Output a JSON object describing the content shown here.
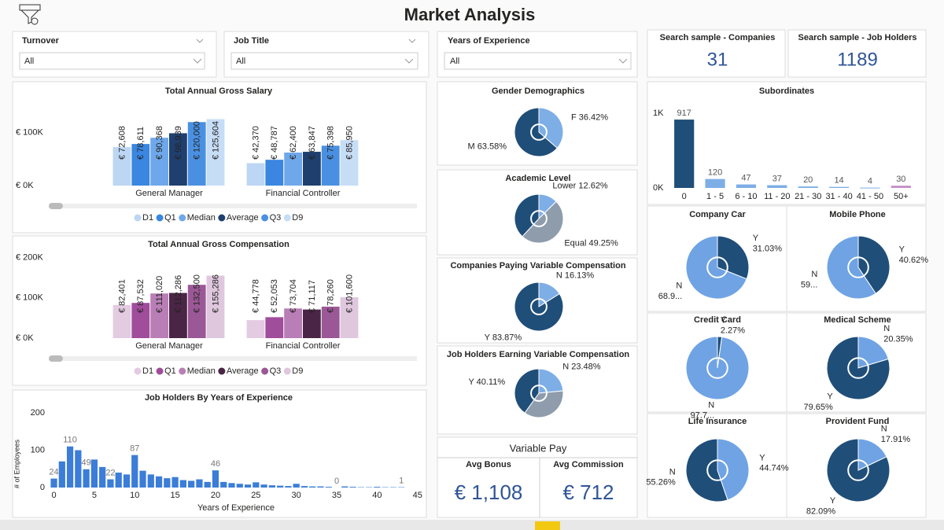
{
  "title": "Market Analysis",
  "filters": [
    {
      "label": "Turnover",
      "value": "All"
    },
    {
      "label": "Job Title",
      "value": "All"
    },
    {
      "label": "Years of Experience",
      "value": "All"
    }
  ],
  "cards": [
    {
      "label": "Search sample - Companies",
      "value": 31
    },
    {
      "label": "Search sample - Job Holders",
      "value": 1189
    }
  ],
  "variable_pay": {
    "title": "Variable Pay",
    "items": [
      {
        "label": "Avg Bonus",
        "value": "€ 1,108"
      },
      {
        "label": "Avg Commission",
        "value": "€ 712"
      }
    ]
  },
  "chart_data": [
    {
      "type": "grouped_bar",
      "title": "Total Annual Gross Salary",
      "categories": [
        "General Manager",
        "Financial Controller"
      ],
      "series": [
        {
          "name": "D1",
          "color": "#bcd6f3",
          "values": [
            72608,
            42370
          ],
          "value_labels": [
            "€ 72,608",
            "€ 42,370"
          ]
        },
        {
          "name": "Q1",
          "color": "#3a86e0",
          "values": [
            78611,
            48787
          ],
          "value_labels": [
            "€ 78,611",
            "€ 48,787"
          ]
        },
        {
          "name": "Median",
          "color": "#6fa8ea",
          "values": [
            90368,
            62400
          ],
          "value_labels": [
            "€ 90,368",
            "€ 62,400"
          ]
        },
        {
          "name": "Average",
          "color": "#1f3f6e",
          "values": [
            98939,
            63847
          ],
          "value_labels": [
            "€ 98,939",
            "€ 63,847"
          ]
        },
        {
          "name": "Q3",
          "color": "#4a90e2",
          "values": [
            120000,
            75398
          ],
          "value_labels": [
            "€ 120,000",
            "€ 75,398"
          ]
        },
        {
          "name": "D9",
          "color": "#c6ddf6",
          "values": [
            125604,
            85950
          ],
          "value_labels": [
            "€ 125,604",
            "€ 85,950"
          ]
        }
      ],
      "ylim": [
        0,
        165000
      ],
      "yticks": [
        {
          "value": 0,
          "label": "€ 0K"
        },
        {
          "value": 100000,
          "label": "€ 100K"
        }
      ]
    },
    {
      "type": "grouped_bar",
      "title": "Total Annual Gross Compensation",
      "categories": [
        "General Manager",
        "Financial Controller"
      ],
      "series": [
        {
          "name": "D1",
          "color": "#e3cbe2",
          "values": [
            82401,
            44778
          ],
          "value_labels": [
            "€ 82,401",
            "€ 44,778"
          ]
        },
        {
          "name": "Q1",
          "color": "#a04d9c",
          "values": [
            87532,
            52053
          ],
          "value_labels": [
            "€ 87,532",
            "€ 52,053"
          ]
        },
        {
          "name": "Median",
          "color": "#b97eb6",
          "values": [
            111020,
            73704
          ],
          "value_labels": [
            "€ 111,020",
            "€ 73,704"
          ]
        },
        {
          "name": "Average",
          "color": "#4a2545",
          "values": [
            112286,
            71117
          ],
          "value_labels": [
            "€ 112,286",
            "€ 71,117"
          ]
        },
        {
          "name": "Q3",
          "color": "#9b5896",
          "values": [
            132500,
            78260
          ],
          "value_labels": [
            "€ 132,500",
            "€ 78,260"
          ]
        },
        {
          "name": "D9",
          "color": "#dfc7de",
          "values": [
            155286,
            101600
          ],
          "value_labels": [
            "€ 155,286",
            "€ 101,600"
          ]
        }
      ],
      "ylim": [
        0,
        215000
      ],
      "yticks": [
        {
          "value": 0,
          "label": "€ 0K"
        },
        {
          "value": 100000,
          "label": "€ 100K"
        },
        {
          "value": 200000,
          "label": "€ 200K"
        }
      ]
    },
    {
      "type": "bar",
      "title": "Job Holders By Years of Experience",
      "xlabel": "Years of Experience",
      "ylabel": "# of Employees",
      "color": "#3b7dd8",
      "x": [
        0,
        1,
        2,
        3,
        4,
        5,
        6,
        7,
        8,
        9,
        10,
        11,
        12,
        13,
        14,
        15,
        16,
        17,
        18,
        19,
        20,
        21,
        22,
        23,
        24,
        25,
        26,
        27,
        28,
        29,
        30,
        31,
        32,
        33,
        34,
        35,
        36,
        37,
        38,
        39,
        40,
        41,
        42,
        43,
        44
      ],
      "values": [
        24,
        70,
        110,
        100,
        49,
        75,
        55,
        22,
        40,
        35,
        87,
        45,
        35,
        30,
        25,
        28,
        20,
        18,
        22,
        15,
        46,
        15,
        12,
        10,
        8,
        14,
        8,
        6,
        5,
        4,
        10,
        4,
        3,
        3,
        2,
        0,
        3,
        2,
        1,
        1,
        2,
        1,
        1,
        1,
        0
      ],
      "value_labels": [
        "24",
        null,
        "110",
        null,
        "49",
        null,
        null,
        "22",
        null,
        null,
        "87",
        null,
        null,
        null,
        null,
        null,
        null,
        null,
        null,
        null,
        "46",
        null,
        null,
        null,
        null,
        null,
        null,
        null,
        null,
        null,
        null,
        null,
        null,
        null,
        null,
        "0",
        null,
        null,
        null,
        null,
        null,
        null,
        null,
        "1",
        null
      ],
      "xlim": [
        -2,
        46
      ],
      "xticks": [
        0,
        5,
        10,
        15,
        20,
        25,
        30,
        35,
        40,
        45
      ],
      "ylim": [
        0,
        200
      ],
      "yticks": [
        0,
        100,
        200
      ]
    },
    {
      "type": "pie",
      "title": "Gender Demographics",
      "categories": [
        "F",
        "M"
      ],
      "values": [
        36.42,
        63.58
      ],
      "value_labels": [
        "36.42%",
        "63.58%"
      ],
      "colors": [
        "#7eaee6",
        "#1f4e79"
      ]
    },
    {
      "type": "pie",
      "title": "Academic Level",
      "categories": [
        "Lower",
        "Equal",
        null
      ],
      "values": [
        12.62,
        49.25,
        38.13
      ],
      "value_labels": [
        "12.62%",
        "49.25%",
        null
      ],
      "colors": [
        "#7eaee6",
        "#8e9cac",
        "#1f4e79"
      ]
    },
    {
      "type": "pie",
      "title": "Companies Paying Variable Compensation",
      "categories": [
        "N",
        "Y"
      ],
      "values": [
        16.13,
        83.87
      ],
      "value_labels": [
        "16.13%",
        "83.87%"
      ],
      "colors": [
        "#7eaee6",
        "#1f4e79"
      ]
    },
    {
      "type": "pie",
      "title": "Job Holders Earning Variable Compensation",
      "categories": [
        "N",
        null,
        "Y"
      ],
      "values": [
        23.48,
        36.41,
        40.11
      ],
      "value_labels": [
        "23.48%",
        null,
        "40.11%"
      ],
      "colors": [
        "#7eaee6",
        "#8e9cac",
        "#1f4e79"
      ]
    },
    {
      "type": "column",
      "title": "Subordinates",
      "categories": [
        "0",
        "1 - 5",
        "6 - 10",
        "11 - 20",
        "21 - 30",
        "31 - 40",
        "41 - 50",
        "50+"
      ],
      "values": [
        917,
        120,
        47,
        37,
        20,
        14,
        4,
        30
      ],
      "colors": [
        "#1f4e79",
        "#7eaee6",
        "#7eaee6",
        "#7eaee6",
        "#7eaee6",
        "#7eaee6",
        "#7eaee6",
        "#c58fc9"
      ],
      "ylim": [
        0,
        1150
      ],
      "yticks": [
        {
          "value": 0,
          "label": "0K"
        },
        {
          "value": 1000,
          "label": "1K"
        }
      ]
    },
    {
      "type": "pie",
      "title": "Company Car",
      "categories": [
        "Y",
        "N"
      ],
      "values": [
        31.03,
        68.97
      ],
      "value_labels": [
        "31.03%",
        "68.9..."
      ],
      "colors": [
        "#1f4e79",
        "#6fa3e4"
      ]
    },
    {
      "type": "pie",
      "title": "Mobile Phone",
      "categories": [
        "Y",
        "N"
      ],
      "values": [
        40.62,
        59.38
      ],
      "value_labels": [
        "40.62%",
        "59..."
      ],
      "colors": [
        "#1f4e79",
        "#6fa3e4"
      ]
    },
    {
      "type": "pie",
      "title": "Credit Card",
      "categories": [
        "Y",
        "N"
      ],
      "values": [
        2.27,
        97.73
      ],
      "value_labels": [
        "2.27%",
        "97.7..."
      ],
      "colors": [
        "#1f4e79",
        "#6fa3e4"
      ]
    },
    {
      "type": "pie",
      "title": "Medical Scheme",
      "categories": [
        "N",
        "Y"
      ],
      "values": [
        20.35,
        79.65
      ],
      "value_labels": [
        "20.35%",
        "79.65%"
      ],
      "colors": [
        "#6fa3e4",
        "#1f4e79"
      ]
    },
    {
      "type": "pie",
      "title": "Life Insurance",
      "categories": [
        "Y",
        "N"
      ],
      "values": [
        44.74,
        55.26
      ],
      "value_labels": [
        "44.74%",
        "55.26%"
      ],
      "colors": [
        "#6fa3e4",
        "#1f4e79"
      ]
    },
    {
      "type": "pie",
      "title": "Provident Fund",
      "categories": [
        "N",
        "Y"
      ],
      "values": [
        17.91,
        82.09
      ],
      "value_labels": [
        "17.91%",
        "82.09%"
      ],
      "colors": [
        "#6fa3e4",
        "#1f4e79"
      ]
    }
  ]
}
